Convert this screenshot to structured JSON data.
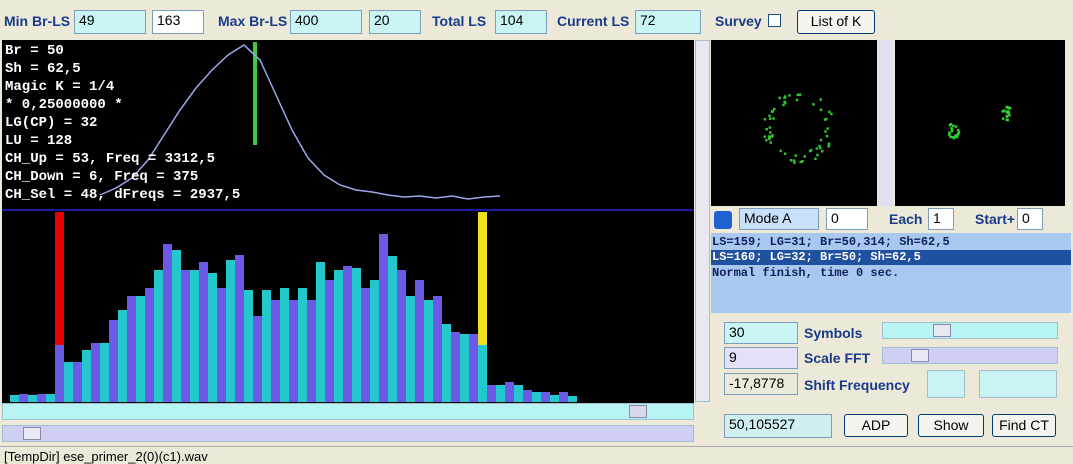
{
  "toolbar": {
    "min_label": "Min Br-LS",
    "min_value": "49",
    "min_extra": "163",
    "max_label": "Max Br-LS",
    "max_value": "400",
    "max_extra": "20",
    "total_label": "Total LS",
    "total_value": "104",
    "current_label": "Current LS",
    "current_value": "72",
    "survey_label": "Survey",
    "list_button": "List of K"
  },
  "overlay": [
    "Br = 50",
    "Sh = 62,5",
    "Magic K = 1/4",
    "* 0,25000000 *",
    "LG(CP) = 32",
    "LU = 128",
    "CH_Up = 53, Freq = 3312,5",
    "CH_Down = 6, Freq = 375",
    "CH_Sel = 48, dFreqs = 2937,5"
  ],
  "curve": [
    13,
    20,
    30,
    48,
    73,
    98,
    120,
    138,
    153,
    163,
    148,
    113,
    78,
    50,
    33,
    23,
    18,
    16,
    13,
    11,
    12,
    10,
    12,
    9,
    11,
    12
  ],
  "bars": [
    7,
    8,
    7,
    8,
    8,
    57,
    40,
    40,
    52,
    59,
    59,
    82,
    92,
    106,
    106,
    114,
    132,
    158,
    152,
    132,
    132,
    140,
    129,
    114,
    142,
    147,
    112,
    86,
    112,
    102,
    114,
    102,
    114,
    102,
    140,
    122,
    132,
    136,
    134,
    114,
    122,
    168,
    146,
    132,
    106,
    122,
    102,
    106,
    78,
    70,
    68,
    68,
    57,
    17,
    17,
    20,
    17,
    12,
    10,
    10,
    7,
    10,
    6
  ],
  "mode": {
    "select": "Mode A",
    "value": "0",
    "each_label": "Each",
    "each_value": "1",
    "start_label": "Start+",
    "start_value": "0"
  },
  "log": [
    "LS=159; LG=31; Br=50,314; Sh=62,5",
    "LS=160; LG=32; Br=50; Sh=62,5",
    "Normal finish, time 0 sec."
  ],
  "controls": {
    "symbols_value": "30",
    "symbols_label": "Symbols",
    "scale_value": "9",
    "scale_label": "Scale FFT",
    "shift_value": "-17,8778",
    "shift_label": "Shift Frequency",
    "result_value": "50,105527",
    "adp_button": "ADP",
    "show_button": "Show",
    "find_button": "Find CT"
  },
  "status": "[TempDir] ese_primer_2(0)(c1).wav"
}
